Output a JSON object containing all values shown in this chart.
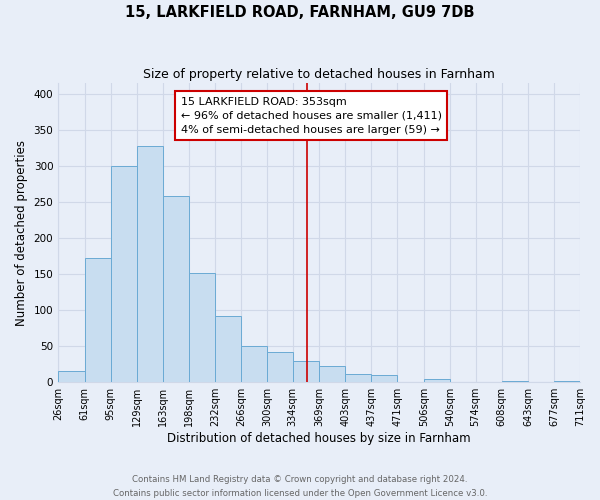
{
  "title": "15, LARKFIELD ROAD, FARNHAM, GU9 7DB",
  "subtitle": "Size of property relative to detached houses in Farnham",
  "xlabel": "Distribution of detached houses by size in Farnham",
  "ylabel": "Number of detached properties",
  "bin_edges": [
    26,
    61,
    95,
    129,
    163,
    198,
    232,
    266,
    300,
    334,
    369,
    403,
    437,
    471,
    506,
    540,
    574,
    608,
    643,
    677,
    711
  ],
  "bin_counts": [
    15,
    172,
    300,
    328,
    258,
    152,
    92,
    50,
    42,
    30,
    22,
    12,
    10,
    0,
    5,
    0,
    0,
    2,
    0,
    2
  ],
  "bar_color": "#c8ddf0",
  "bar_edge_color": "#6aaad4",
  "vline_x": 353,
  "vline_color": "#cc0000",
  "annotation_text": "15 LARKFIELD ROAD: 353sqm\n← 96% of detached houses are smaller (1,411)\n4% of semi-detached houses are larger (59) →",
  "annotation_box_color": "white",
  "annotation_box_edge_color": "#cc0000",
  "ylim": [
    0,
    415
  ],
  "background_color": "#e8eef8",
  "grid_color": "#d0d8e8",
  "footer_text": "Contains HM Land Registry data © Crown copyright and database right 2024.\nContains public sector information licensed under the Open Government Licence v3.0.",
  "tick_labels": [
    "26sqm",
    "61sqm",
    "95sqm",
    "129sqm",
    "163sqm",
    "198sqm",
    "232sqm",
    "266sqm",
    "300sqm",
    "334sqm",
    "369sqm",
    "403sqm",
    "437sqm",
    "471sqm",
    "506sqm",
    "540sqm",
    "574sqm",
    "608sqm",
    "643sqm",
    "677sqm",
    "711sqm"
  ],
  "title_fontsize": 10.5,
  "subtitle_fontsize": 9,
  "label_fontsize": 8.5,
  "tick_fontsize": 7,
  "annotation_fontsize": 8,
  "yticks": [
    0,
    50,
    100,
    150,
    200,
    250,
    300,
    350,
    400
  ]
}
